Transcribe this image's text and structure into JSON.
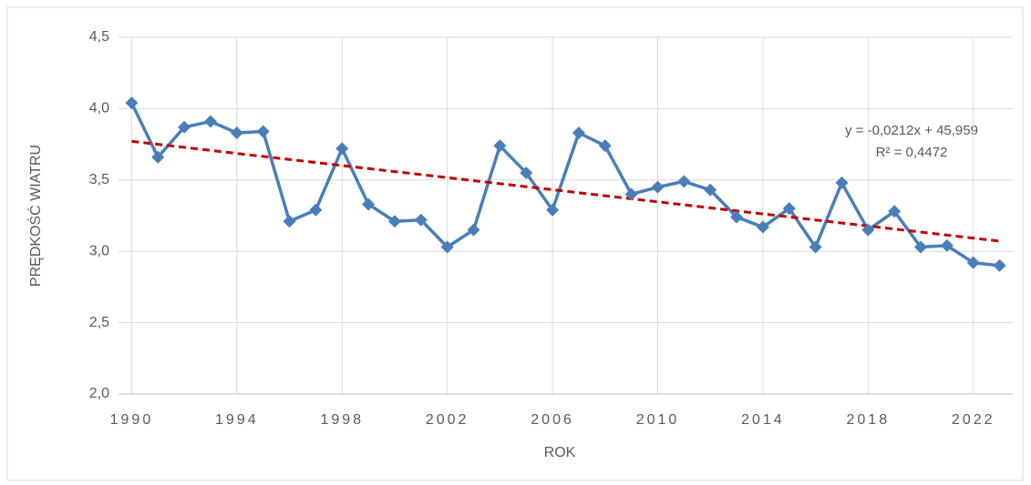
{
  "chart_data": {
    "type": "line",
    "xlabel": "ROK",
    "ylabel": "PRĘDKOŚĆ WIATRU",
    "x": [
      1990,
      1991,
      1992,
      1993,
      1994,
      1995,
      1996,
      1997,
      1998,
      1999,
      2000,
      2001,
      2002,
      2003,
      2004,
      2005,
      2006,
      2007,
      2008,
      2009,
      2010,
      2011,
      2012,
      2013,
      2014,
      2015,
      2016,
      2017,
      2018,
      2019,
      2020,
      2021,
      2022,
      2023
    ],
    "series": [
      {
        "color": "#4a7ebb",
        "values": [
          4.04,
          3.66,
          3.87,
          3.91,
          3.83,
          3.84,
          3.21,
          3.29,
          3.72,
          3.33,
          3.21,
          3.22,
          3.03,
          3.15,
          3.74,
          3.55,
          3.29,
          3.83,
          3.74,
          3.4,
          3.45,
          3.49,
          3.43,
          3.24,
          3.17,
          3.3,
          3.03,
          3.48,
          3.15,
          3.28,
          3.03,
          3.04,
          2.92,
          2.9
        ]
      }
    ],
    "trendline": {
      "slope": -0.0212,
      "intercept": 45.959,
      "color": "#c00000",
      "equation": "y = -0,0212x + 45,959",
      "r2": "R² = 0,4472"
    },
    "xlim": [
      1989.5,
      2023.5
    ],
    "xticks": [
      1990,
      1994,
      1998,
      2002,
      2006,
      2010,
      2014,
      2018,
      2022
    ],
    "ylim": [
      2,
      4.5
    ],
    "yticks": [
      {
        "value": 2,
        "label": "2,0"
      },
      {
        "value": 2.5,
        "label": "2,5"
      },
      {
        "value": 3,
        "label": "3,0"
      },
      {
        "value": 3.5,
        "label": "3,5"
      },
      {
        "value": 4,
        "label": "4,0"
      },
      {
        "value": 4.5,
        "label": "4,5"
      }
    ],
    "grid": true
  }
}
